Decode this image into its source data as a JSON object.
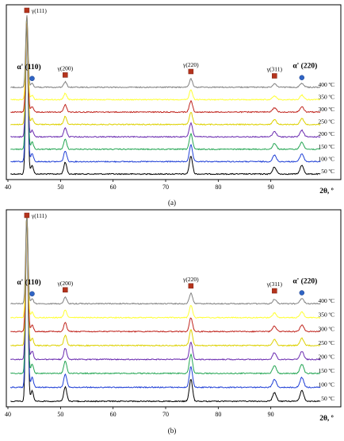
{
  "chart_data": [
    {
      "type": "line",
      "panel": "(a)",
      "xlabel": "2θ, º",
      "xlim": [
        40,
        100
      ],
      "x_ticks": [
        "40",
        "50",
        "60",
        "70",
        "80",
        "90"
      ],
      "series": [
        {
          "name": "50 ºC",
          "color": "#000000",
          "offset": 0
        },
        {
          "name": "100 ºC",
          "color": "#1f3fd6",
          "offset": 1
        },
        {
          "name": "150 ºC",
          "color": "#22a552",
          "offset": 2
        },
        {
          "name": "200 ºC",
          "color": "#6a2bb0",
          "offset": 3
        },
        {
          "name": "250 ºC",
          "color": "#ddd100",
          "offset": 4
        },
        {
          "name": "300 ºC",
          "color": "#c0241d",
          "offset": 5
        },
        {
          "name": "350 ºC",
          "color": "#ffff33",
          "offset": 6
        },
        {
          "name": "400 ºC",
          "color": "#808080",
          "offset": 7
        }
      ],
      "peaks": [
        {
          "label": "γ(111)",
          "two_theta": 43.6,
          "marker": "square"
        },
        {
          "label": "α' (110)",
          "two_theta": 44.6,
          "marker": "circle"
        },
        {
          "label": "γ(200)",
          "two_theta": 50.9,
          "marker": "square"
        },
        {
          "label": "γ(220)",
          "two_theta": 74.8,
          "marker": "square"
        },
        {
          "label": "γ(311)",
          "two_theta": 90.7,
          "marker": "square"
        },
        {
          "label": "α' (220)",
          "two_theta": 95.9,
          "marker": "circle"
        }
      ]
    },
    {
      "type": "line",
      "panel": "(b)",
      "xlabel": "2θ, º",
      "xlim": [
        40,
        100
      ],
      "x_ticks": [
        "40",
        "50",
        "60",
        "70",
        "80",
        "90"
      ],
      "series": [
        {
          "name": "50 ºC",
          "color": "#000000",
          "offset": 0
        },
        {
          "name": "100 ºC",
          "color": "#1f3fd6",
          "offset": 1
        },
        {
          "name": "150 ºC",
          "color": "#22a552",
          "offset": 2
        },
        {
          "name": "200 ºC",
          "color": "#6a2bb0",
          "offset": 3
        },
        {
          "name": "250 ºC",
          "color": "#ddd100",
          "offset": 4
        },
        {
          "name": "300 ºC",
          "color": "#c0241d",
          "offset": 5
        },
        {
          "name": "350 ºC",
          "color": "#ffff33",
          "offset": 6
        },
        {
          "name": "400 ºC",
          "color": "#808080",
          "offset": 7
        }
      ],
      "peaks": [
        {
          "label": "γ(111)",
          "two_theta": 43.6,
          "marker": "square"
        },
        {
          "label": "α' (110)",
          "two_theta": 44.6,
          "marker": "circle"
        },
        {
          "label": "γ(200)",
          "two_theta": 50.9,
          "marker": "square"
        },
        {
          "label": "γ(220)",
          "two_theta": 74.8,
          "marker": "square"
        },
        {
          "label": "γ(311)",
          "two_theta": 90.7,
          "marker": "square"
        },
        {
          "label": "α' (220)",
          "two_theta": 95.9,
          "marker": "circle"
        }
      ]
    }
  ],
  "colors": {
    "gamma_marker": "#b5341d",
    "alpha_marker": "#2f64c4",
    "frame": "#000000"
  }
}
